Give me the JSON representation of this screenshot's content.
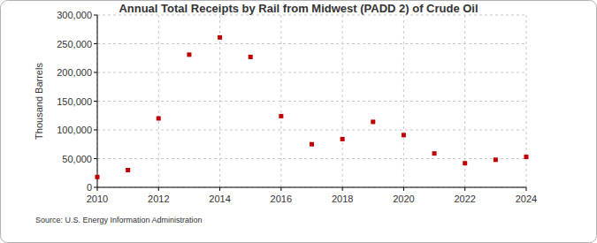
{
  "chart_data": {
    "type": "scatter",
    "title": "Annual Total Receipts by Rail from Midwest (PADD 2) of Crude Oil",
    "y_label": "Thousand Barrels",
    "source": "Source: U.S. Energy Information Administration",
    "x": [
      2010,
      2011,
      2012,
      2013,
      2014,
      2015,
      2016,
      2017,
      2018,
      2019,
      2020,
      2021,
      2022,
      2023,
      2024
    ],
    "values": [
      18000,
      30000,
      120000,
      231000,
      261000,
      227000,
      124000,
      75000,
      84000,
      114000,
      91000,
      59000,
      42000,
      48000,
      53000
    ],
    "color": "#c00000",
    "marker": "square",
    "xlim": [
      2010,
      2024
    ],
    "xticks": [
      2010,
      2012,
      2014,
      2016,
      2018,
      2020,
      2022,
      2024
    ],
    "ylim": [
      0,
      300000
    ],
    "yticks": [
      0,
      {
        "value": 50000,
        "label": "50,000"
      },
      {
        "value": 100000,
        "label": "100,000"
      },
      {
        "value": 150000,
        "label": "150,000"
      },
      {
        "value": 200000,
        "label": "200,000"
      },
      {
        "value": 250000,
        "label": "250,000"
      },
      {
        "value": 300000,
        "label": "300,000"
      }
    ],
    "grid": true
  }
}
